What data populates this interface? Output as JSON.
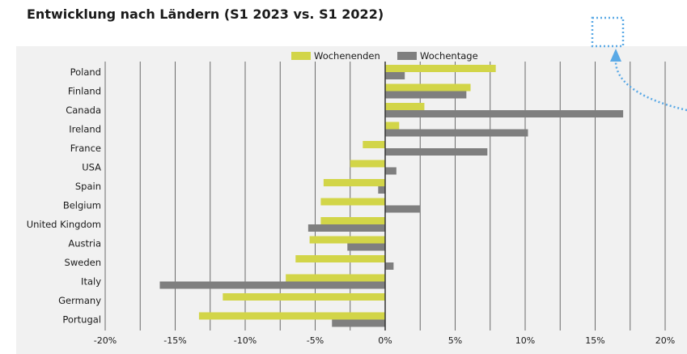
{
  "colors": {
    "wochenenden": "#d2d548",
    "wochentage": "#7f7f7f",
    "grid": "#6b6b6b",
    "annotation": "#5aa9e6"
  },
  "chart_data": {
    "type": "bar",
    "orientation": "horizontal",
    "title": "Entwicklung nach Ländern (S1 2023 vs. S1 2022)",
    "categories": [
      "Poland",
      "Finland",
      "Canada",
      "Ireland",
      "France",
      "USA",
      "Spain",
      "Belgium",
      "United Kingdom",
      "Austria",
      "Sweden",
      "Italy",
      "Germany",
      "Portugal"
    ],
    "series": [
      {
        "name": "Wochenenden",
        "values": [
          7.9,
          6.1,
          2.8,
          1.0,
          -1.6,
          -2.5,
          -4.4,
          -4.6,
          -4.6,
          -5.4,
          -6.4,
          -7.1,
          -11.6,
          -13.3
        ]
      },
      {
        "name": "Wochentage",
        "values": [
          1.4,
          5.8,
          17.0,
          10.2,
          7.3,
          0.8,
          -0.5,
          2.5,
          -5.5,
          -2.7,
          0.6,
          -16.1,
          0.0,
          -3.8
        ]
      }
    ],
    "xlim": [
      -20,
      20
    ],
    "xticks": [
      -20,
      -15,
      -10,
      -5,
      0,
      5,
      10,
      15,
      20
    ],
    "xtick_labels": [
      "-20%",
      "-15%",
      "-10%",
      "-5%",
      "0%",
      "5%",
      "10%",
      "15%",
      "20%"
    ],
    "grid": true,
    "legend_position": "top"
  }
}
